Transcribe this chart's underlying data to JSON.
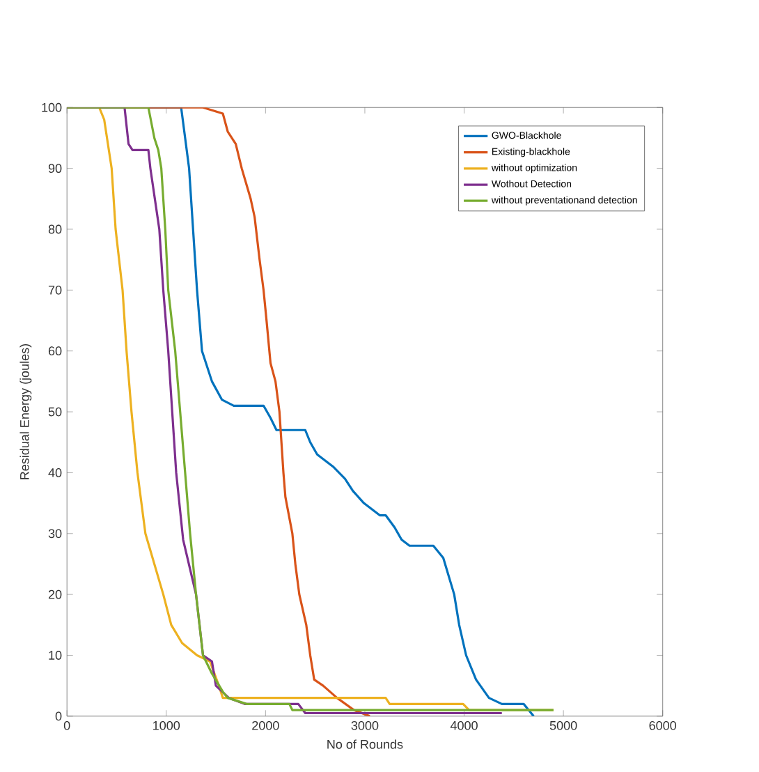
{
  "chart_data": {
    "type": "line",
    "xlabel": "No of Rounds",
    "ylabel": "Residual Energy (joules)",
    "xlim": [
      0,
      6000
    ],
    "ylim": [
      0,
      100
    ],
    "xticks": [
      0,
      1000,
      2000,
      3000,
      4000,
      5000,
      6000
    ],
    "yticks": [
      0,
      10,
      20,
      30,
      40,
      50,
      60,
      70,
      80,
      90,
      100
    ],
    "legend": "top right",
    "grid": false,
    "series": [
      {
        "name": "GWO-Blackhole",
        "color": "#0072bd",
        "x": [
          0,
          1150,
          1230,
          1270,
          1310,
          1360,
          1460,
          1560,
          1680,
          1980,
          2050,
          2110,
          2400,
          2450,
          2520,
          2680,
          2800,
          2880,
          2990,
          3150,
          3210,
          3300,
          3370,
          3450,
          3690,
          3790,
          3900,
          3950,
          4020,
          4120,
          4250,
          4380,
          4600,
          4700
        ],
        "values": [
          100,
          100,
          90,
          80,
          70,
          60,
          55,
          52,
          51,
          51,
          49,
          47,
          47,
          45,
          43,
          41,
          39,
          37,
          35,
          33,
          33,
          31,
          29,
          28,
          28,
          26,
          20,
          15,
          10,
          6,
          3,
          2,
          2,
          0
        ]
      },
      {
        "name": "Existing-blackhole",
        "color": "#d95319",
        "x": [
          0,
          1370,
          1570,
          1620,
          1700,
          1760,
          1850,
          1890,
          1940,
          1980,
          2010,
          2050,
          2100,
          2140,
          2160,
          2180,
          2200,
          2270,
          2300,
          2340,
          2410,
          2450,
          2490,
          2580,
          2650,
          2720,
          2890,
          3050
        ],
        "values": [
          100,
          100,
          99,
          96,
          94,
          90,
          85,
          82,
          75,
          70,
          65,
          58,
          55,
          50,
          45,
          40,
          36,
          30,
          25,
          20,
          15,
          10,
          6,
          5,
          4,
          3,
          1,
          0
        ]
      },
      {
        "name": "without optimization",
        "color": "#edb120",
        "x": [
          0,
          325,
          375,
          450,
          490,
          560,
          600,
          650,
          710,
          790,
          970,
          1050,
          1160,
          1310,
          1440,
          1530,
          1570,
          3210,
          3250,
          3990,
          4050,
          4900
        ],
        "values": [
          100,
          100,
          98,
          90,
          80,
          70,
          60,
          50,
          40,
          30,
          20,
          15,
          12,
          10,
          9,
          5,
          3,
          3,
          2,
          2,
          1,
          1
        ]
      },
      {
        "name": "Wothout Detection",
        "color": "#7e2f8e",
        "x": [
          0,
          580,
          620,
          660,
          820,
          840,
          930,
          970,
          1020,
          1060,
          1100,
          1170,
          1300,
          1370,
          1460,
          1500,
          1630,
          1790,
          2330,
          2400,
          4380
        ],
        "values": [
          100,
          100,
          94,
          93,
          93,
          90,
          80,
          70,
          60,
          50,
          40,
          29,
          20,
          10,
          9,
          5,
          3,
          2,
          2,
          0.5,
          0.5
        ]
      },
      {
        "name": "without preventationand detection",
        "color": "#77ac30",
        "x": [
          0,
          820,
          880,
          920,
          950,
          990,
          1020,
          1090,
          1140,
          1190,
          1240,
          1300,
          1370,
          1460,
          1570,
          1620,
          1810,
          2240,
          2270,
          4900
        ],
        "values": [
          100,
          100,
          95,
          93,
          90,
          80,
          70,
          60,
          50,
          40,
          30,
          20,
          10,
          7,
          4,
          3,
          2,
          2,
          1,
          1
        ]
      }
    ]
  }
}
